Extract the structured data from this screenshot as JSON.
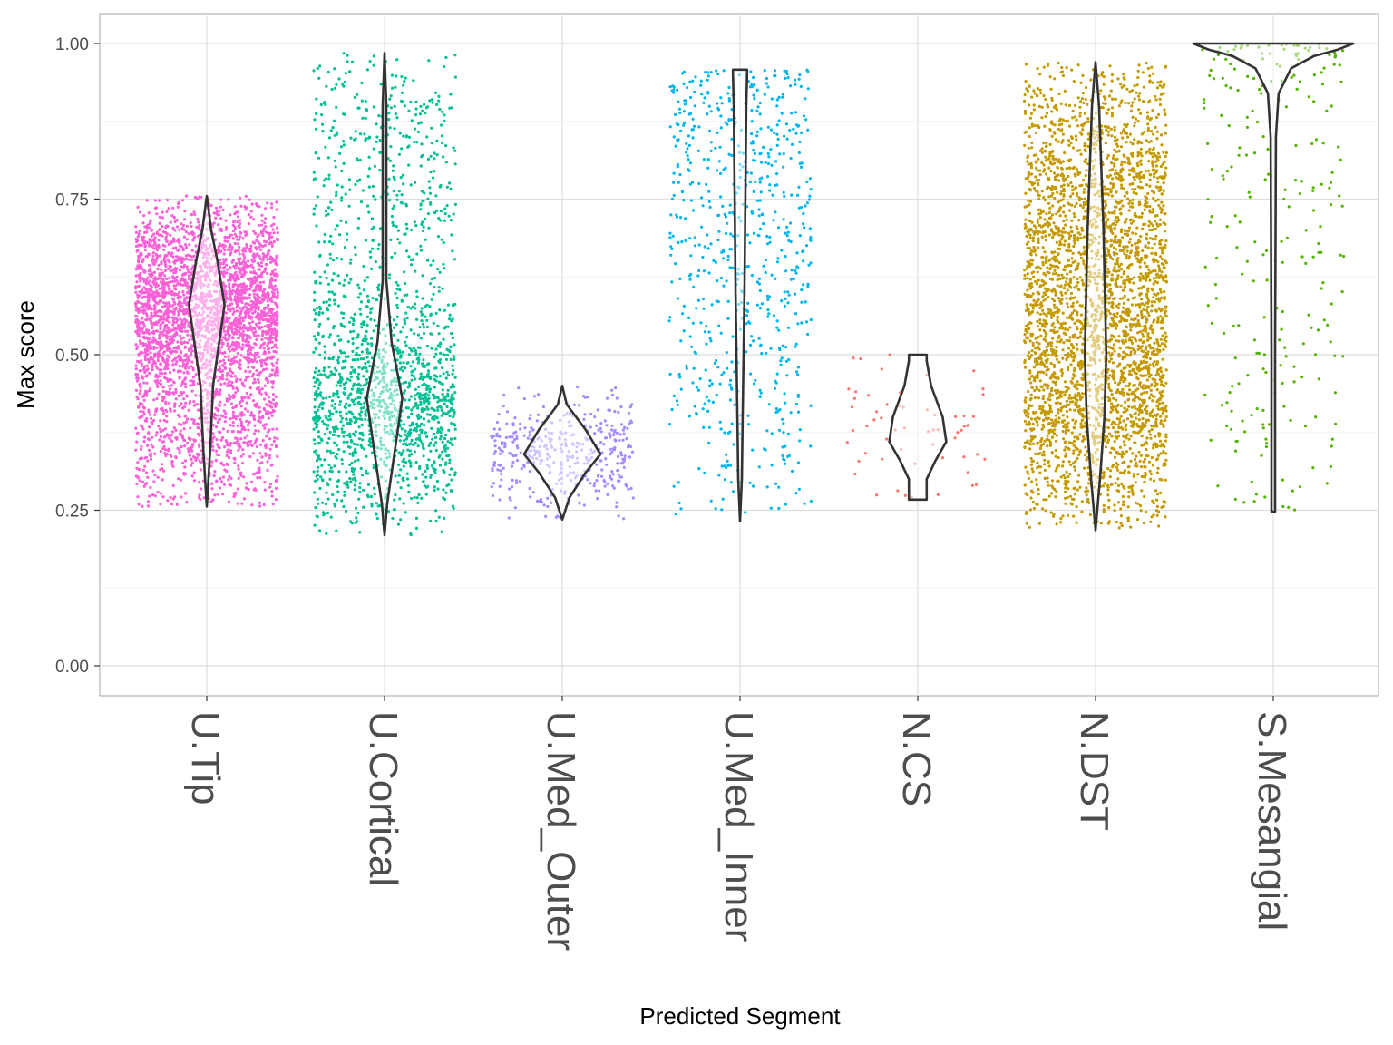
{
  "chart_data": {
    "type": "violin",
    "overlay": "jittered points",
    "xlabel": "Predicted Segment",
    "ylabel": "Max score",
    "ylim": [
      -0.05,
      1.05
    ],
    "yticks": [
      "0.00",
      "0.25",
      "0.50",
      "0.75",
      "1.00"
    ],
    "grid": true,
    "legend": "none",
    "categories": [
      "U.Tip",
      "U.Cortical",
      "U.Med_Outer",
      "U.Med_Inner",
      "N.CS",
      "N.DST",
      "S.Mesangial"
    ],
    "groups": [
      {
        "name": "U.Tip",
        "color": "#FB61D7",
        "approx_points": 3500,
        "range": [
          0.256,
          0.755
        ],
        "violin": [
          [
            0.755,
            0
          ],
          [
            0.7,
            0.025
          ],
          [
            0.65,
            0.06
          ],
          [
            0.58,
            0.1
          ],
          [
            0.52,
            0.07
          ],
          [
            0.45,
            0.035
          ],
          [
            0.35,
            0.02
          ],
          [
            0.256,
            0
          ]
        ]
      },
      {
        "name": "U.Cortical",
        "color": "#00C094",
        "approx_points": 1800,
        "range": [
          0.21,
          0.985
        ],
        "violin": [
          [
            0.985,
            0
          ],
          [
            0.9,
            0.01
          ],
          [
            0.62,
            0.01
          ],
          [
            0.52,
            0.04
          ],
          [
            0.43,
            0.1
          ],
          [
            0.33,
            0.05
          ],
          [
            0.26,
            0.015
          ],
          [
            0.21,
            0
          ]
        ]
      },
      {
        "name": "U.Med_Outer",
        "color": "#A58AFF",
        "approx_points": 400,
        "range": [
          0.235,
          0.45
        ],
        "violin": [
          [
            0.45,
            0
          ],
          [
            0.42,
            0.025
          ],
          [
            0.38,
            0.13
          ],
          [
            0.34,
            0.215
          ],
          [
            0.31,
            0.13
          ],
          [
            0.27,
            0.04
          ],
          [
            0.235,
            0
          ]
        ]
      },
      {
        "name": "U.Med_Inner",
        "color": "#00B6EB",
        "approx_points": 700,
        "range": [
          0.232,
          0.958
        ],
        "violin": [
          [
            0.958,
            0.04
          ],
          [
            0.95,
            0.04
          ],
          [
            0.9,
            0.035
          ],
          [
            0.6,
            0.025
          ],
          [
            0.4,
            0.015
          ],
          [
            0.3,
            0.01
          ],
          [
            0.232,
            0
          ]
        ]
      },
      {
        "name": "N.CS",
        "color": "#F8766D",
        "approx_points": 60,
        "range": [
          0.267,
          0.5
        ],
        "violin": [
          [
            0.5,
            0.05
          ],
          [
            0.49,
            0.05
          ],
          [
            0.45,
            0.075
          ],
          [
            0.4,
            0.14
          ],
          [
            0.36,
            0.16
          ],
          [
            0.33,
            0.1
          ],
          [
            0.3,
            0.05
          ],
          [
            0.267,
            0.05
          ]
        ]
      },
      {
        "name": "N.DST",
        "color": "#C49A00",
        "approx_points": 3500,
        "range": [
          0.218,
          0.97
        ],
        "violin": [
          [
            0.97,
            0
          ],
          [
            0.9,
            0.02
          ],
          [
            0.7,
            0.045
          ],
          [
            0.5,
            0.06
          ],
          [
            0.4,
            0.05
          ],
          [
            0.3,
            0.025
          ],
          [
            0.218,
            0
          ]
        ]
      },
      {
        "name": "S.Mesangial",
        "color": "#53B400",
        "approx_points": 250,
        "range": [
          0.248,
          1.0
        ],
        "violin": [
          [
            1.0,
            0.45
          ],
          [
            0.99,
            0.36
          ],
          [
            0.98,
            0.23
          ],
          [
            0.96,
            0.1
          ],
          [
            0.92,
            0.03
          ],
          [
            0.85,
            0.015
          ],
          [
            0.5,
            0.01
          ],
          [
            0.248,
            0.01
          ]
        ]
      }
    ]
  }
}
